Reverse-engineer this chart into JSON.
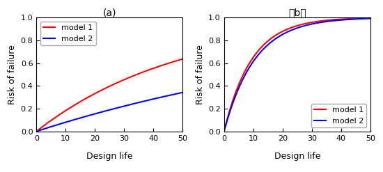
{
  "title_a": "(a)",
  "title_b": "（b）",
  "xlabel": "Design life",
  "ylabel": "Risk of failure",
  "xlim": [
    0,
    50
  ],
  "ylim_a": [
    0.0,
    1.0
  ],
  "ylim_b": [
    0.0,
    1.0
  ],
  "yticks_a": [
    0.0,
    0.2,
    0.4,
    0.6,
    0.8,
    1.0
  ],
  "yticks_b": [
    0.0,
    0.2,
    0.4,
    0.6,
    0.8,
    1.0
  ],
  "xticks": [
    0,
    10,
    20,
    30,
    40,
    50
  ],
  "model1_color": "#ff0000",
  "model2_color": "#0000ff",
  "model1_label": "model 1",
  "model2_label": "model 2",
  "T_a_model1": 50,
  "T_a_model2": 120,
  "T_b_model1": 10,
  "T_b_model2": 11,
  "background_color": "#ffffff",
  "linewidth": 1.5,
  "legend_fontsize": 8,
  "axis_fontsize": 9,
  "title_fontsize": 10
}
